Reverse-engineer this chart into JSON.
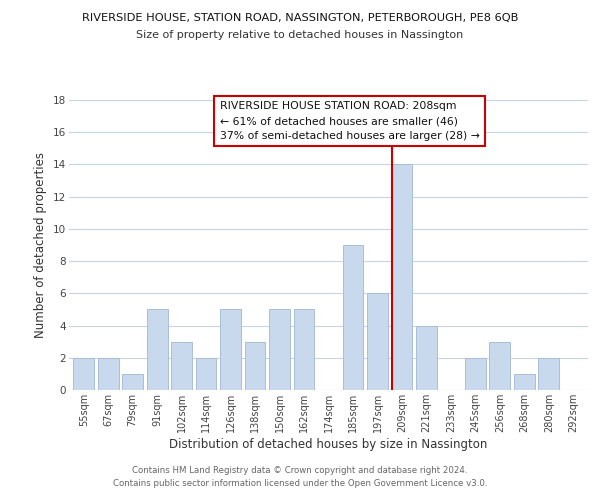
{
  "title": "RIVERSIDE HOUSE, STATION ROAD, NASSINGTON, PETERBOROUGH, PE8 6QB",
  "subtitle": "Size of property relative to detached houses in Nassington",
  "xlabel": "Distribution of detached houses by size in Nassington",
  "ylabel": "Number of detached properties",
  "bar_labels": [
    "55sqm",
    "67sqm",
    "79sqm",
    "91sqm",
    "102sqm",
    "114sqm",
    "126sqm",
    "138sqm",
    "150sqm",
    "162sqm",
    "174sqm",
    "185sqm",
    "197sqm",
    "209sqm",
    "221sqm",
    "233sqm",
    "245sqm",
    "256sqm",
    "268sqm",
    "280sqm",
    "292sqm"
  ],
  "bar_values": [
    2,
    2,
    1,
    5,
    3,
    2,
    5,
    3,
    5,
    5,
    0,
    9,
    6,
    14,
    4,
    0,
    2,
    3,
    1,
    2,
    0
  ],
  "bar_color": "#c9d9ed",
  "bar_edge_color": "#aabfd6",
  "vline_x_index": 13,
  "vline_color": "#cc0000",
  "ylim": [
    0,
    18
  ],
  "yticks": [
    0,
    2,
    4,
    6,
    8,
    10,
    12,
    14,
    16,
    18
  ],
  "annotation_title": "RIVERSIDE HOUSE STATION ROAD: 208sqm",
  "annotation_line1": "← 61% of detached houses are smaller (46)",
  "annotation_line2": "37% of semi-detached houses are larger (28) →",
  "annotation_box_color": "#ffffff",
  "annotation_box_edge": "#cc0000",
  "footer1": "Contains HM Land Registry data © Crown copyright and database right 2024.",
  "footer2": "Contains public sector information licensed under the Open Government Licence v3.0.",
  "background_color": "#ffffff",
  "grid_color": "#c8d4e3"
}
